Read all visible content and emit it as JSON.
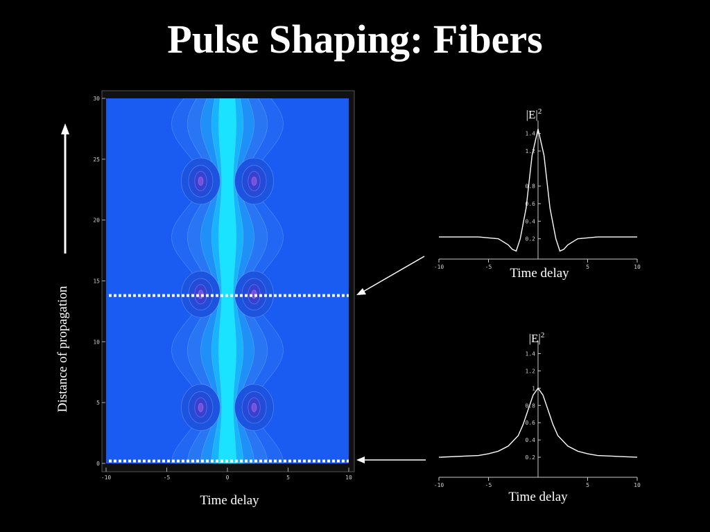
{
  "slide": {
    "title": "Pulse Shaping: Fibers",
    "y_axis_caption": "Distance of propagation"
  },
  "colors": {
    "background": "#000000",
    "contour_base": "#1a5cf2",
    "contour_core": "#19e3ff",
    "dotted_line": "#ffffff",
    "profile_line": "#ffffff"
  },
  "chart_data": [
    {
      "type": "heatmap",
      "title": "",
      "xlabel": "Time delay",
      "ylabel": "Distance of propagation",
      "xlim": [
        -10,
        10
      ],
      "ylim": [
        0,
        30
      ],
      "x_ticks": [
        "-10",
        "-5",
        "0",
        "5",
        "10"
      ],
      "y_ticks": [
        "0",
        "5",
        "10",
        "15",
        "20",
        "25",
        "30"
      ],
      "x_tick_values": [
        -10,
        -5,
        0,
        5,
        10
      ],
      "y_tick_values": [
        0,
        5,
        10,
        15,
        20,
        25,
        30
      ],
      "grid": false,
      "dotted_slices_z": [
        0.2,
        13.8
      ],
      "soliton_period": 9.3,
      "intensity_valley_z": [
        4.6,
        13.9,
        23.2
      ],
      "side_lobe_t": [
        -2.2,
        2.2
      ]
    },
    {
      "type": "line",
      "title": "|E|2",
      "ylabel_text": "|E|",
      "ylabel_sup": "2",
      "xlabel": "Time delay",
      "xlim": [
        -10,
        10
      ],
      "ylim": [
        0,
        1.5
      ],
      "x_ticks": [
        "-10",
        "-5",
        "5",
        "10"
      ],
      "x_tick_values": [
        -10,
        -5,
        5,
        10
      ],
      "y_ticks": [
        "0.2",
        "0.4",
        "0.6",
        "0.8",
        "1.2",
        "1.4"
      ],
      "y_tick_values": [
        0.2,
        0.4,
        0.6,
        0.8,
        1.2,
        1.4
      ],
      "series": [
        {
          "x": [
            -10,
            -6,
            -4,
            -3,
            -2.6,
            -2.2,
            -1.8,
            -1.2,
            -0.6,
            0,
            0.6,
            1.2,
            1.8,
            2.2,
            2.6,
            3,
            4,
            6,
            10
          ],
          "y": [
            0.22,
            0.22,
            0.2,
            0.13,
            0.08,
            0.06,
            0.2,
            0.55,
            1.15,
            1.45,
            1.15,
            0.55,
            0.2,
            0.06,
            0.08,
            0.13,
            0.2,
            0.22,
            0.22
          ]
        }
      ]
    },
    {
      "type": "line",
      "title": "|E|2",
      "ylabel_text": "|E|",
      "ylabel_sup": "2",
      "xlabel": "Time delay",
      "xlim": [
        -10,
        10
      ],
      "ylim": [
        0,
        1.5
      ],
      "x_ticks": [
        "-10",
        "-5",
        "5",
        "10"
      ],
      "x_tick_values": [
        -10,
        -5,
        5,
        10
      ],
      "y_ticks": [
        "0.2",
        "0.4",
        "0.6",
        "0.8",
        "1",
        "1.2",
        "1.4"
      ],
      "y_tick_values": [
        0.2,
        0.4,
        0.6,
        0.8,
        1,
        1.2,
        1.4
      ],
      "series": [
        {
          "x": [
            -10,
            -6,
            -5,
            -4,
            -3,
            -2,
            -1.5,
            -1,
            -0.5,
            0,
            0.5,
            1,
            1.5,
            2,
            3,
            4,
            5,
            6,
            10
          ],
          "y": [
            0.2,
            0.22,
            0.24,
            0.27,
            0.33,
            0.45,
            0.58,
            0.75,
            0.92,
            1.0,
            0.92,
            0.75,
            0.58,
            0.45,
            0.33,
            0.27,
            0.24,
            0.22,
            0.2
          ]
        }
      ]
    }
  ]
}
